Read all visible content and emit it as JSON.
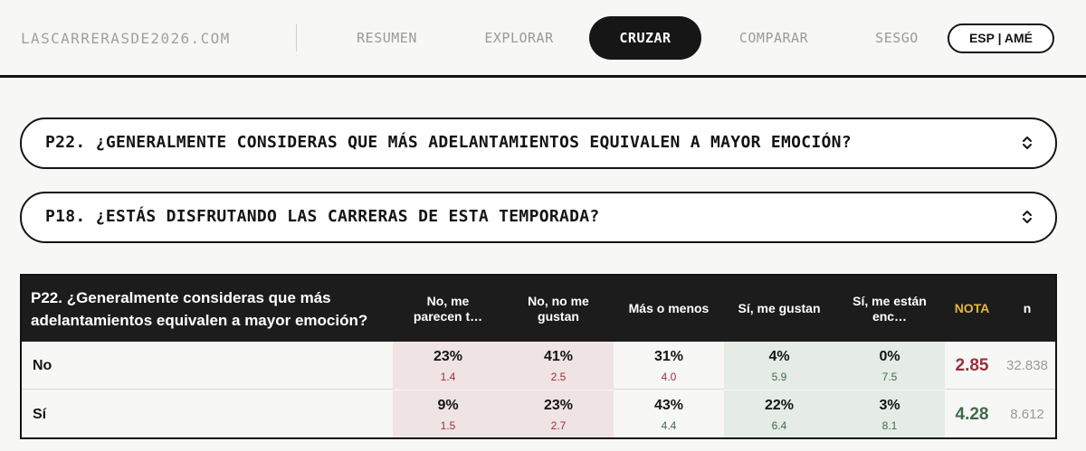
{
  "site": {
    "logo": "LASCARRERASDE2026.COM"
  },
  "nav": {
    "items": [
      {
        "label": "RESUMEN",
        "active": false
      },
      {
        "label": "EXPLORAR",
        "active": false
      },
      {
        "label": "CRUZAR",
        "active": true
      },
      {
        "label": "COMPARAR",
        "active": false
      },
      {
        "label": "SESGO",
        "active": false
      }
    ],
    "lang": "ESP | AMÉ"
  },
  "selectors": [
    {
      "text": "P22. ¿GENERALMENTE CONSIDERAS QUE MÁS ADELANTAMIENTOS EQUIVALEN A MAYOR EMOCIÓN?",
      "icon": "chevron-up-down-icon"
    },
    {
      "text": "P18. ¿ESTÁS DISFRUTANDO LAS CARRERAS DE ESTA TEMPORADA?",
      "icon": "chevron-up-down-icon"
    }
  ],
  "table": {
    "title": "P22. ¿Generalmente consideras que más adelantamientos equivalen a mayor emoción?",
    "columns": [
      "No, me parecen t…",
      "No, no me gustan",
      "Más o menos",
      "Sí, me gustan",
      "Sí, me están enc…"
    ],
    "nota_label": "NOTA",
    "n_label": "n",
    "rows": [
      {
        "label": "No",
        "cells": [
          {
            "pct": "23%",
            "score": "1.4"
          },
          {
            "pct": "41%",
            "score": "2.5"
          },
          {
            "pct": "31%",
            "score": "4.0"
          },
          {
            "pct": "4%",
            "score": "5.9"
          },
          {
            "pct": "0%",
            "score": "7.5"
          }
        ],
        "nota": "2.85",
        "n": "32.838"
      },
      {
        "label": "Sí",
        "cells": [
          {
            "pct": "9%",
            "score": "1.5"
          },
          {
            "pct": "23%",
            "score": "2.7"
          },
          {
            "pct": "43%",
            "score": "4.4"
          },
          {
            "pct": "22%",
            "score": "6.4"
          },
          {
            "pct": "3%",
            "score": "8.1"
          }
        ],
        "nota": "4.28",
        "n": "8.612"
      }
    ],
    "colors": {
      "negative": "#9b2e3c",
      "positive": "#3f6b4a",
      "nota_header": "#e8b73a"
    }
  }
}
